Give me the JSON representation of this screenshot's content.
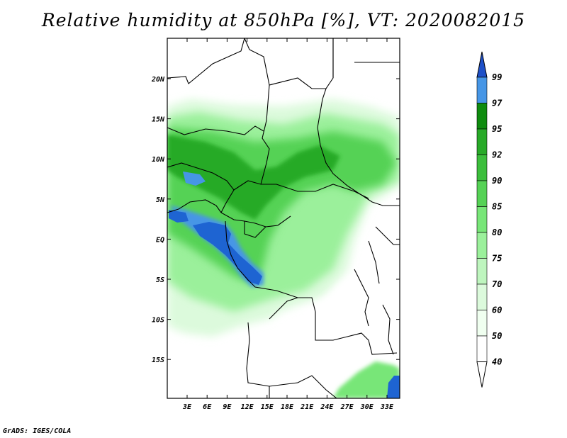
{
  "title": "Relative humidity at 850hPa [%], VT: 2020082015",
  "credit": "GrADS: IGES/COLA",
  "map": {
    "lon_ticks": [
      "3E",
      "6E",
      "9E",
      "12E",
      "15E",
      "18E",
      "21E",
      "24E",
      "27E",
      "30E",
      "33E"
    ],
    "lat_ticks": [
      "20N",
      "15N",
      "10N",
      "5N",
      "EQ",
      "5S",
      "10S",
      "15S"
    ]
  },
  "colorbar": {
    "labels": [
      "99",
      "97",
      "95",
      "92",
      "90",
      "85",
      "80",
      "75",
      "70",
      "60",
      "50",
      "40"
    ],
    "colors": [
      "#1e64d2",
      "#4696e6",
      "#0f8c0f",
      "#28aa28",
      "#3cbe3c",
      "#55d255",
      "#78e678",
      "#9bf09b",
      "#bef5be",
      "#dcfadc",
      "#f0fff0",
      "#ffffff"
    ],
    "top_arrow_color": "#1e50c8"
  }
}
